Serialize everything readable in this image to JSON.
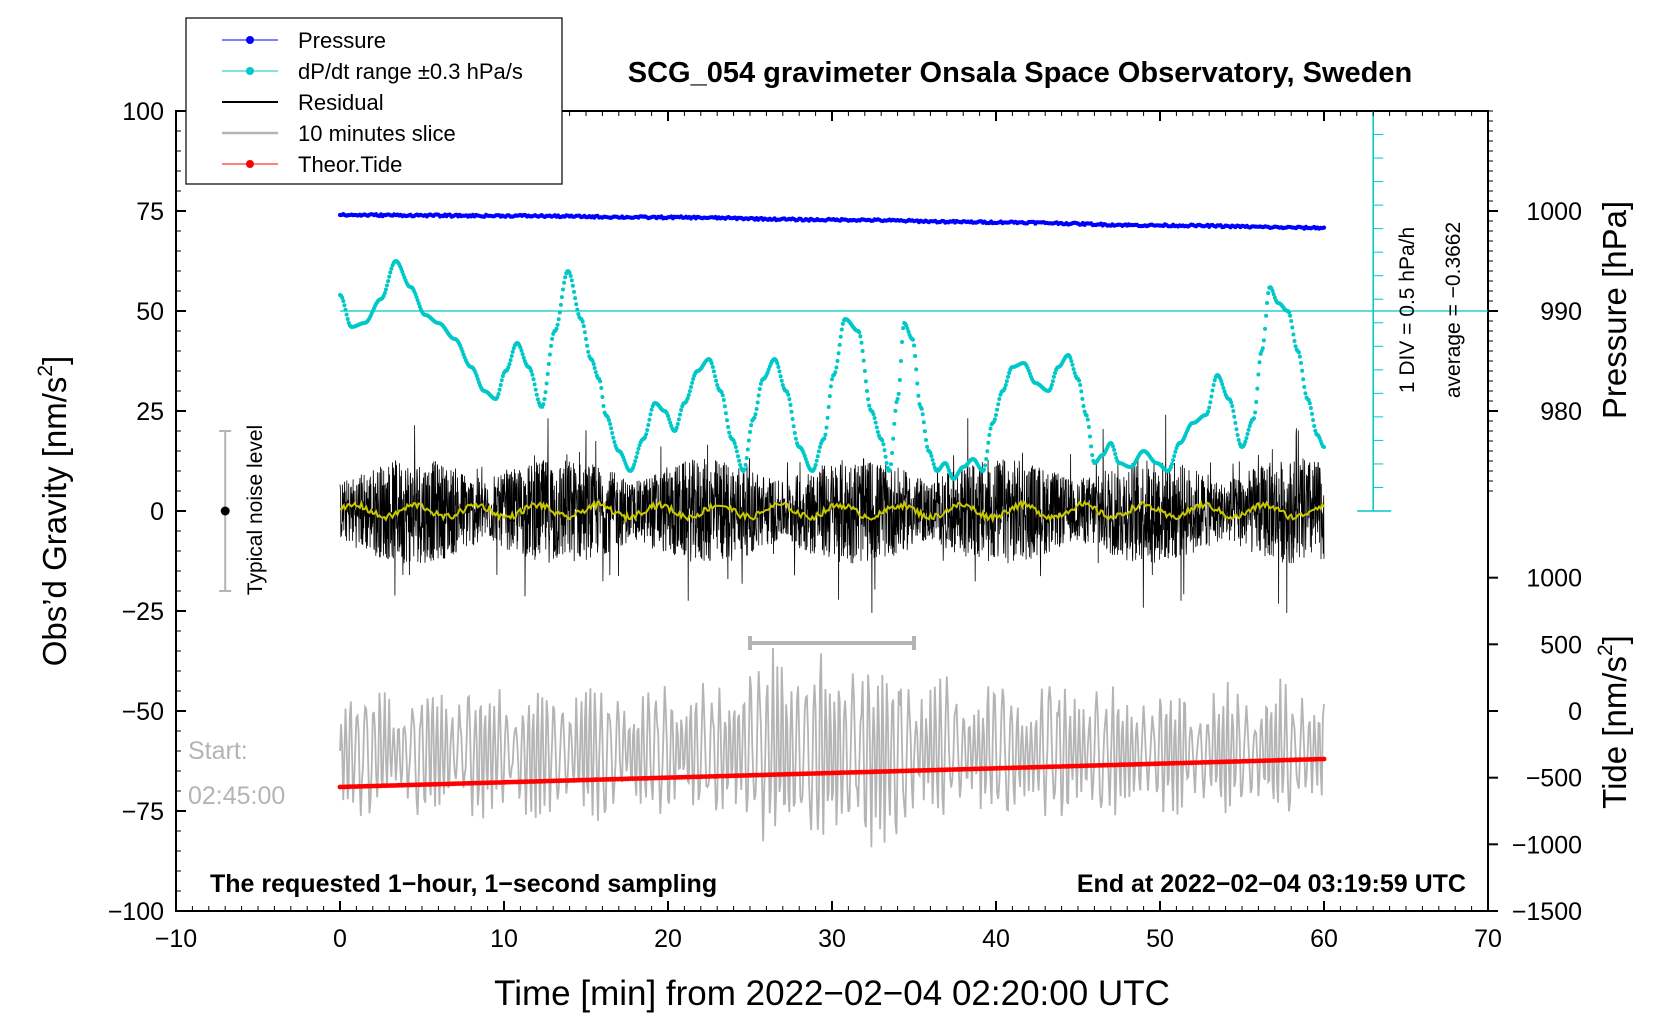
{
  "chart_data": {
    "type": "line",
    "title": "SCG_054 gravimeter Onsala Space Observatory, Sweden",
    "xlabel": "Time [min] from 2022−02−04 02:20:00 UTC",
    "ylabel": "Obs’d Gravity [nm/s²]",
    "ylabel_main": "Obs’d Gravity [nm/s",
    "ylabel_sup": "2",
    "ylabel_tail": "]",
    "xlim": [
      -10,
      70
    ],
    "ylim": [
      -100,
      100
    ],
    "x_ticks": [
      -10,
      0,
      10,
      20,
      30,
      40,
      50,
      60,
      70
    ],
    "x_tick_labels": [
      "−10",
      "0",
      "10",
      "20",
      "30",
      "40",
      "50",
      "60",
      "70"
    ],
    "y_ticks": [
      -100,
      -75,
      -50,
      -25,
      0,
      25,
      50,
      75,
      100
    ],
    "y_tick_labels": [
      "−100",
      "−75",
      "−50",
      "−25",
      "0",
      "25",
      "50",
      "75",
      "100"
    ],
    "pressure_axis": {
      "label": "Pressure [hPa]",
      "ticks": [
        980,
        990,
        1000
      ],
      "tick_labels": [
        "980",
        "990",
        "1000"
      ],
      "gravity_equiv": [
        25,
        50,
        75
      ]
    },
    "tide_axis": {
      "label_main": "Tide [nm/s",
      "label_sup": "2",
      "label_tail": "]",
      "ticks": [
        -1500,
        -1000,
        -500,
        0,
        500,
        1000
      ],
      "tick_labels": [
        "−1500",
        "−1000",
        "−500",
        "0",
        "500",
        "1000"
      ],
      "gravity_equiv": [
        -100,
        -83.33,
        -66.67,
        -50,
        -33.33,
        -16.67
      ]
    },
    "legend": {
      "position": "top-left",
      "entries": [
        {
          "label": "Pressure",
          "color": "#0000ff",
          "marker": "dot"
        },
        {
          "label": "dP/dt range ±0.3 hPa/s",
          "color": "#00c8c8",
          "marker": "dot"
        },
        {
          "label": "Residual",
          "color": "#000000",
          "marker": "line"
        },
        {
          "label": "10 minutes slice",
          "color": "#b4b4b4",
          "marker": "line"
        },
        {
          "label": "Theor.Tide",
          "color": "#ff0000",
          "marker": "dot"
        }
      ]
    },
    "series": [
      {
        "name": "Pressure",
        "color": "#0000ff",
        "x": [
          0,
          10,
          20,
          30,
          40,
          50,
          60
        ],
        "y": [
          74,
          73.8,
          73.4,
          72.8,
          72.2,
          71.4,
          70.8
        ]
      },
      {
        "name": "dP/dt",
        "color": "#00c8c8",
        "x": [
          0,
          0.7,
          1.5,
          2.5,
          3.4,
          4.3,
          5.2,
          6,
          7,
          8,
          8.8,
          9.5,
          10.1,
          10.8,
          11.5,
          12.3,
          13.1,
          13.9,
          14.7,
          15.3,
          15.8,
          16.2,
          17,
          17.7,
          18.5,
          19.2,
          19.8,
          20.4,
          21,
          21.8,
          22.5,
          23.2,
          23.9,
          24.6,
          25.2,
          25.8,
          26.5,
          27.2,
          28,
          28.8,
          29.5,
          30.1,
          30.8,
          31.6,
          32.4,
          33,
          33.5,
          34,
          34.4,
          34.9,
          35.4,
          35.9,
          36.4,
          36.9,
          37.4,
          38,
          38.6,
          39.2,
          39.8,
          40.4,
          41,
          41.7,
          42.4,
          43.2,
          43.8,
          44.4,
          45,
          45.5,
          46,
          46.5,
          47,
          47.5,
          48.2,
          49,
          49.8,
          50.5,
          51.2,
          52,
          52.8,
          53.5,
          54.2,
          55,
          55.7,
          56.2,
          56.7,
          57.2,
          57.8,
          58.4,
          59,
          59.6,
          60
        ],
        "y": [
          54,
          46,
          47,
          53,
          62.5,
          56,
          49,
          47,
          43,
          36,
          30,
          28,
          35,
          42,
          36,
          26,
          45,
          60,
          48,
          38,
          33,
          24,
          15,
          10,
          18,
          27,
          25,
          20,
          27,
          35,
          38,
          30,
          18,
          10,
          23,
          33,
          38,
          30,
          16,
          10,
          18,
          34,
          48,
          45,
          25,
          18,
          10,
          28,
          47,
          43,
          26,
          15,
          10,
          12,
          8,
          11,
          13,
          10,
          22,
          30,
          36,
          37,
          32,
          30,
          36,
          39,
          33,
          24,
          12,
          14,
          17,
          12,
          11,
          15,
          12,
          10,
          17,
          22,
          24,
          34,
          28,
          16,
          23,
          40,
          56,
          52,
          50,
          40,
          28,
          19,
          16
        ]
      },
      {
        "name": "Residual",
        "color": "#000000",
        "x_range": [
          0,
          60
        ],
        "amplitude": 12
      },
      {
        "name": "Residual smoothed",
        "color": "#c8c800",
        "x_range": [
          0,
          60
        ],
        "center": 0
      },
      {
        "name": "10 minutes slice",
        "color": "#b4b4b4",
        "x_range": [
          0,
          60
        ],
        "center": -60
      },
      {
        "name": "Theor.Tide",
        "color": "#ff0000",
        "x": [
          0,
          60
        ],
        "y": [
          -69,
          -62
        ]
      }
    ],
    "pressure_scale": {
      "label_div": "1 DIV = 0.5 hPa/h",
      "label_avg": "average = −0.3662",
      "x": 63,
      "y_range": [
        0,
        100
      ]
    },
    "noise_bar": {
      "label": "Typical noise level",
      "x": -7,
      "y_center": 0,
      "y_range": [
        -20,
        20
      ]
    },
    "slice_bar": {
      "x_range": [
        25,
        35
      ],
      "y": -33
    },
    "start_label_1": "Start:",
    "start_label_2": "02:45:00",
    "annotation_left": "The requested 1−hour, 1−second sampling",
    "annotation_right": "End at 2022−02−04 03:19:59 UTC"
  }
}
